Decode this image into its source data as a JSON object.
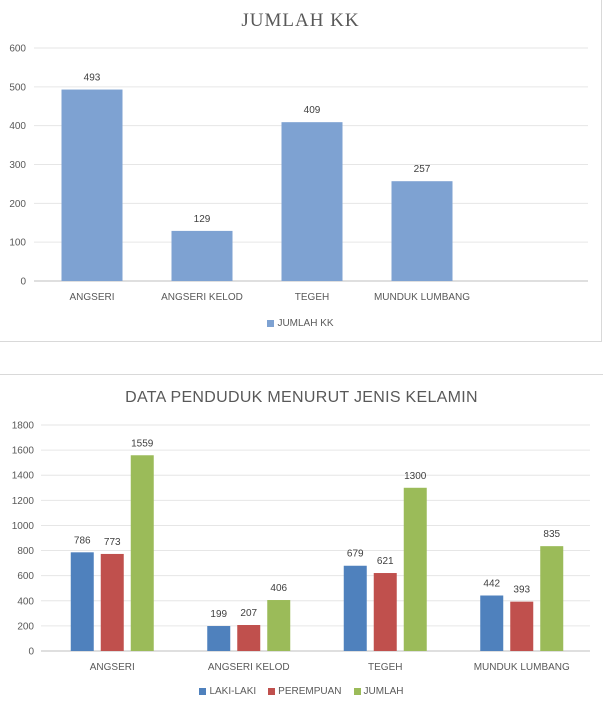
{
  "charts": [
    {
      "type": "bar",
      "title": "JUMLAH KK",
      "categories": [
        "ANGSERI",
        "ANGSERI KELOD",
        "TEGEH",
        "MUNDUK LUMBANG"
      ],
      "series": [
        {
          "name": "JUMLAH KK",
          "values": [
            493,
            129,
            409,
            257
          ],
          "color": "#7ea2d2"
        }
      ],
      "ylim": [
        0,
        600
      ],
      "yticks": [
        0,
        100,
        200,
        300,
        400,
        500,
        600
      ],
      "grid": true,
      "legend": "bottom"
    },
    {
      "type": "bar",
      "title": "DATA PENDUDUK MENURUT JENIS KELAMIN",
      "categories": [
        "ANGSERI",
        "ANGSERI KELOD",
        "TEGEH",
        "MUNDUK LUMBANG"
      ],
      "series": [
        {
          "name": "LAKI-LAKI",
          "values": [
            786,
            199,
            679,
            442
          ],
          "color": "#4f81bd"
        },
        {
          "name": "PEREMPUAN",
          "values": [
            773,
            207,
            621,
            393
          ],
          "color": "#c0504d"
        },
        {
          "name": "JUMLAH",
          "values": [
            1559,
            406,
            1300,
            835
          ],
          "color": "#9bbb59"
        }
      ],
      "ylim": [
        0,
        1800
      ],
      "yticks": [
        0,
        200,
        400,
        600,
        800,
        1000,
        1200,
        1400,
        1600,
        1800
      ],
      "grid": true,
      "legend": "bottom"
    }
  ]
}
